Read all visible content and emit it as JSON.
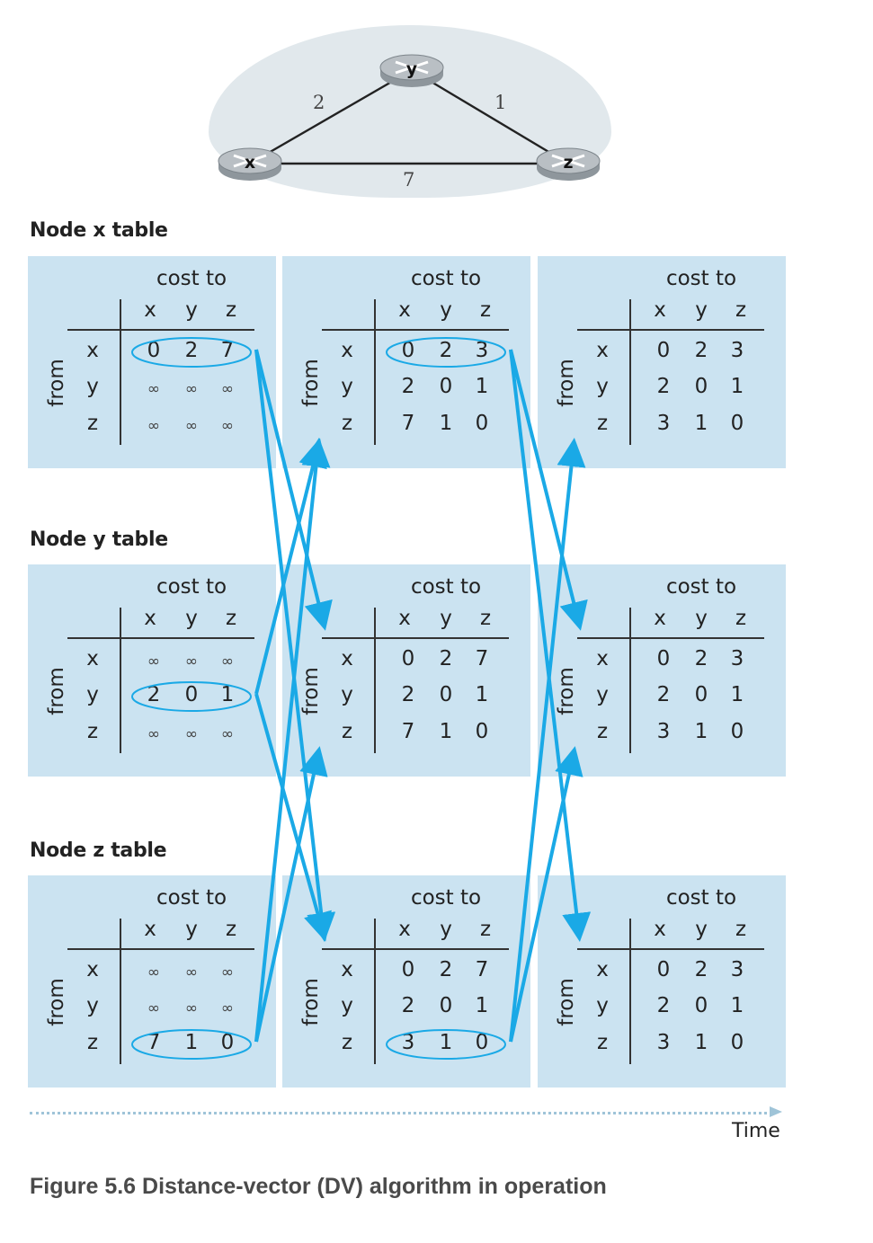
{
  "network": {
    "nodes": [
      {
        "id": "x",
        "label": "x"
      },
      {
        "id": "y",
        "label": "y"
      },
      {
        "id": "z",
        "label": "z"
      }
    ],
    "links": [
      {
        "from": "x",
        "to": "y",
        "cost": "2"
      },
      {
        "from": "y",
        "to": "z",
        "cost": "1"
      },
      {
        "from": "x",
        "to": "z",
        "cost": "7"
      }
    ]
  },
  "labels": {
    "cost_to": "cost to",
    "from": "from",
    "time": "Time",
    "caption": "Figure 5.6 Distance-vector (DV) algorithm in operation",
    "columns": [
      "x",
      "y",
      "z"
    ],
    "rows": [
      "x",
      "y",
      "z"
    ]
  },
  "sections": [
    {
      "title": "Node x table",
      "tables": [
        {
          "cells": [
            [
              "0",
              "2",
              "7"
            ],
            [
              "∞",
              "∞",
              "∞"
            ],
            [
              "∞",
              "∞",
              "∞"
            ]
          ],
          "highlight_row": 0
        },
        {
          "cells": [
            [
              "0",
              "2",
              "3"
            ],
            [
              "2",
              "0",
              "1"
            ],
            [
              "7",
              "1",
              "0"
            ]
          ],
          "highlight_row": 0
        },
        {
          "cells": [
            [
              "0",
              "2",
              "3"
            ],
            [
              "2",
              "0",
              "1"
            ],
            [
              "3",
              "1",
              "0"
            ]
          ],
          "highlight_row": -1
        }
      ]
    },
    {
      "title": "Node y table",
      "tables": [
        {
          "cells": [
            [
              "∞",
              "∞",
              "∞"
            ],
            [
              "2",
              "0",
              "1"
            ],
            [
              "∞",
              "∞",
              "∞"
            ]
          ],
          "highlight_row": 1
        },
        {
          "cells": [
            [
              "0",
              "2",
              "7"
            ],
            [
              "2",
              "0",
              "1"
            ],
            [
              "7",
              "1",
              "0"
            ]
          ],
          "highlight_row": -1
        },
        {
          "cells": [
            [
              "0",
              "2",
              "3"
            ],
            [
              "2",
              "0",
              "1"
            ],
            [
              "3",
              "1",
              "0"
            ]
          ],
          "highlight_row": -1
        }
      ]
    },
    {
      "title": "Node z table",
      "tables": [
        {
          "cells": [
            [
              "∞",
              "∞",
              "∞"
            ],
            [
              "∞",
              "∞",
              "∞"
            ],
            [
              "7",
              "1",
              "0"
            ]
          ],
          "highlight_row": 2
        },
        {
          "cells": [
            [
              "0",
              "2",
              "7"
            ],
            [
              "2",
              "0",
              "1"
            ],
            [
              "3",
              "1",
              "0"
            ]
          ],
          "highlight_row": 2
        },
        {
          "cells": [
            [
              "0",
              "2",
              "3"
            ],
            [
              "2",
              "0",
              "1"
            ],
            [
              "3",
              "1",
              "0"
            ]
          ],
          "highlight_row": -1
        }
      ]
    }
  ],
  "colors": {
    "panel": "#cbe3f1",
    "arrow": "#1aa9e6",
    "highlight": "#1aa9e6",
    "router": "#b9bfc4"
  }
}
